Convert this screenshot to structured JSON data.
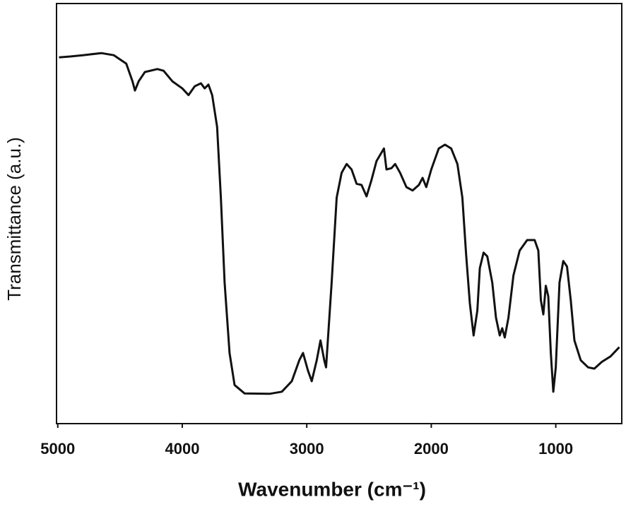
{
  "chart_data": {
    "type": "line",
    "x_label": "Wavenumber (cm⁻¹)",
    "y_label": "Transmittance (a.u.)",
    "xlim": [
      5010,
      470
    ],
    "ylim": [
      0,
      100
    ],
    "xticks": [
      5000,
      4000,
      3000,
      2000,
      1000
    ],
    "x": [
      4990,
      4900,
      4800,
      4650,
      4550,
      4450,
      4400,
      4380,
      4350,
      4300,
      4200,
      4150,
      4080,
      4000,
      3950,
      3900,
      3850,
      3820,
      3790,
      3760,
      3720,
      3690,
      3660,
      3620,
      3580,
      3500,
      3300,
      3200,
      3120,
      3060,
      3030,
      2990,
      2960,
      2920,
      2890,
      2860,
      2845,
      2800,
      2760,
      2720,
      2680,
      2640,
      2600,
      2560,
      2520,
      2480,
      2440,
      2380,
      2360,
      2320,
      2290,
      2250,
      2200,
      2150,
      2100,
      2070,
      2040,
      2000,
      1940,
      1890,
      1840,
      1790,
      1750,
      1720,
      1690,
      1660,
      1630,
      1610,
      1580,
      1550,
      1510,
      1480,
      1450,
      1430,
      1410,
      1380,
      1340,
      1290,
      1230,
      1170,
      1140,
      1120,
      1100,
      1080,
      1060,
      1040,
      1020,
      1000,
      970,
      940,
      910,
      880,
      850,
      800,
      740,
      690,
      630,
      560,
      490
    ],
    "series": [
      {
        "color": "#111111",
        "values": [
          87.2,
          87.4,
          87.7,
          88.2,
          87.7,
          85.7,
          81.5,
          79.3,
          81.5,
          83.7,
          84.4,
          84,
          81.5,
          79.8,
          78.2,
          80.3,
          81,
          79.8,
          80.7,
          78.2,
          70.6,
          53.8,
          33.6,
          16.8,
          9.2,
          7.2,
          7.1,
          7.6,
          10.1,
          15.1,
          16.8,
          12.6,
          10.1,
          15.1,
          19.8,
          15.1,
          13.4,
          33.6,
          53.8,
          59.7,
          61.8,
          60.5,
          57.1,
          56.8,
          54.1,
          58,
          62.5,
          65.5,
          60.5,
          60.8,
          61.8,
          59.7,
          56.3,
          55.5,
          56.8,
          58.5,
          56.3,
          60.5,
          65.5,
          66.4,
          65.5,
          61.8,
          53.8,
          40.3,
          28.6,
          21,
          26.9,
          37,
          40.7,
          39.8,
          33.6,
          25.2,
          21,
          22.7,
          20.5,
          25.2,
          35.3,
          41.2,
          43.7,
          43.7,
          41.2,
          29.4,
          26,
          32.8,
          30.3,
          16.8,
          7.6,
          13.4,
          33.6,
          38.7,
          37.4,
          29.4,
          19.8,
          15.1,
          13.4,
          13.1,
          14.7,
          16,
          18.2
        ]
      }
    ]
  }
}
